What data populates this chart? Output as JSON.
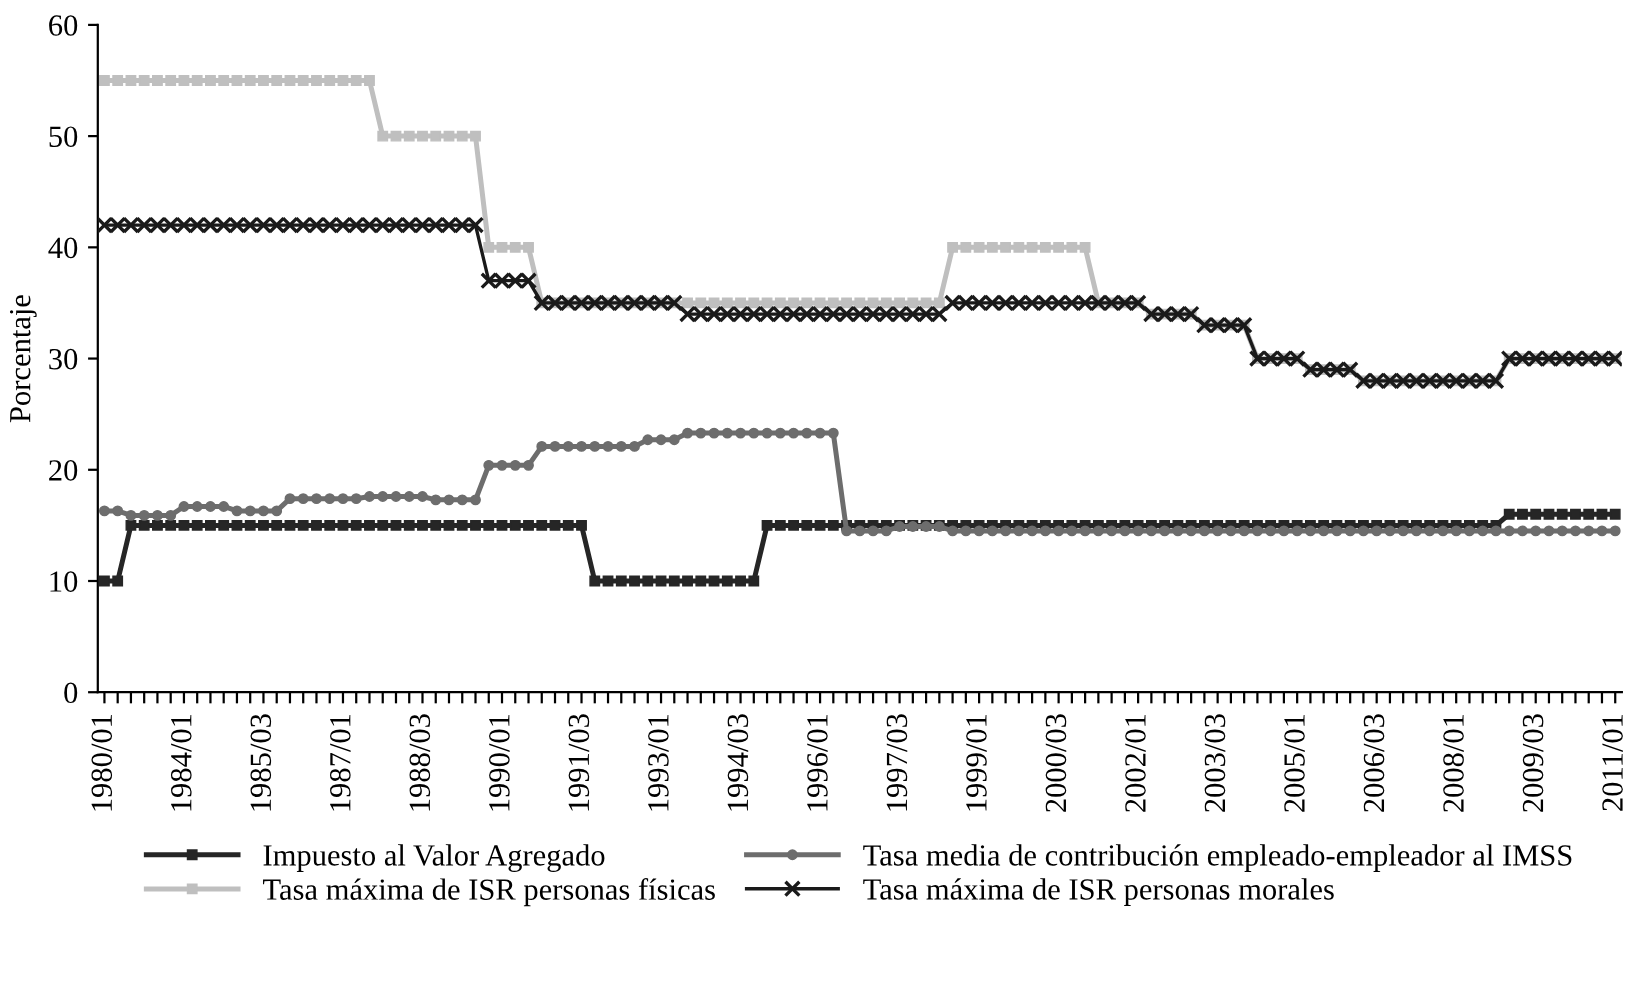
{
  "chart_data": {
    "type": "line",
    "ylabel": "Porcentaje",
    "ylim": [
      0,
      60
    ],
    "yticks": [
      0,
      10,
      20,
      30,
      40,
      50,
      60
    ],
    "grid": false,
    "legend": "bottom",
    "categories": [
      "1980/01",
      null,
      null,
      null,
      null,
      null,
      "1984/01",
      null,
      null,
      null,
      null,
      null,
      "1985/03",
      null,
      null,
      null,
      null,
      null,
      "1987/01",
      null,
      null,
      null,
      null,
      null,
      "1988/03",
      null,
      null,
      null,
      null,
      null,
      "1990/01",
      null,
      null,
      null,
      null,
      null,
      "1991/03",
      null,
      null,
      null,
      null,
      null,
      "1993/01",
      null,
      null,
      null,
      null,
      null,
      "1994/03",
      null,
      null,
      null,
      null,
      null,
      "1996/01",
      null,
      null,
      null,
      null,
      null,
      "1997/03",
      null,
      null,
      null,
      null,
      null,
      "1999/01",
      null,
      null,
      null,
      null,
      null,
      "2000/03",
      null,
      null,
      null,
      null,
      null,
      "2002/01",
      null,
      null,
      null,
      null,
      null,
      "2003/03",
      null,
      null,
      null,
      null,
      null,
      "2005/01",
      null,
      null,
      null,
      null,
      null,
      "2006/03",
      null,
      null,
      null,
      null,
      null,
      "2008/01",
      null,
      null,
      null,
      null,
      null,
      "2009/03",
      null,
      null,
      null,
      null,
      null,
      "2011/01"
    ],
    "series": [
      {
        "name": "Impuesto al Valor Agregado",
        "color": "#262626",
        "marker": "square",
        "values": [
          10,
          10,
          15,
          15,
          15,
          15,
          15,
          15,
          15,
          15,
          15,
          15,
          15,
          15,
          15,
          15,
          15,
          15,
          15,
          15,
          15,
          15,
          15,
          15,
          15,
          15,
          15,
          15,
          15,
          15,
          15,
          15,
          15,
          15,
          15,
          15,
          15,
          10,
          10,
          10,
          10,
          10,
          10,
          10,
          10,
          10,
          10,
          10,
          10,
          10,
          15,
          15,
          15,
          15,
          15,
          15,
          15,
          15,
          15,
          15,
          15,
          15,
          15,
          15,
          15,
          15,
          15,
          15,
          15,
          15,
          15,
          15,
          15,
          15,
          15,
          15,
          15,
          15,
          15,
          15,
          15,
          15,
          15,
          15,
          15,
          15,
          15,
          15,
          15,
          15,
          15,
          15,
          15,
          15,
          15,
          15,
          15,
          15,
          15,
          15,
          15,
          15,
          15,
          15,
          15,
          15,
          16,
          16,
          16,
          16,
          16,
          16,
          16,
          16,
          16
        ]
      },
      {
        "name": "Tasa máxima de ISR personas físicas",
        "color": "#bfbfbf",
        "marker": "square",
        "values": [
          55,
          55,
          55,
          55,
          55,
          55,
          55,
          55,
          55,
          55,
          55,
          55,
          55,
          55,
          55,
          55,
          55,
          55,
          55,
          55,
          55,
          50,
          50,
          50,
          50,
          50,
          50,
          50,
          50,
          40,
          40,
          40,
          40,
          35,
          35,
          35,
          35,
          35,
          35,
          35,
          35,
          35,
          35,
          35,
          35,
          35,
          35,
          35,
          35,
          35,
          35,
          35,
          35,
          35,
          35,
          35,
          35,
          35,
          35,
          35,
          35,
          35,
          35,
          35,
          40,
          40,
          40,
          40,
          40,
          40,
          40,
          40,
          40,
          40,
          40,
          35,
          35,
          35,
          35,
          34,
          34,
          34,
          34,
          33,
          33,
          33,
          33,
          30,
          30,
          30,
          30,
          29,
          29,
          29,
          29,
          28,
          28,
          28,
          28,
          28,
          28,
          28,
          28,
          28,
          28,
          28,
          30,
          30,
          30,
          30,
          30,
          30,
          30,
          30,
          30
        ]
      },
      {
        "name": "Tasa media de contribución empleado-empleador al IMSS",
        "color": "#6d6d6d",
        "marker": "circle",
        "values": [
          16.3,
          16.3,
          15.9,
          15.9,
          15.9,
          15.9,
          16.7,
          16.7,
          16.7,
          16.7,
          16.3,
          16.3,
          16.3,
          16.3,
          17.4,
          17.4,
          17.4,
          17.4,
          17.4,
          17.4,
          17.6,
          17.6,
          17.6,
          17.6,
          17.6,
          17.3,
          17.3,
          17.3,
          17.3,
          20.4,
          20.4,
          20.4,
          20.4,
          22.1,
          22.1,
          22.1,
          22.1,
          22.1,
          22.1,
          22.1,
          22.1,
          22.7,
          22.7,
          22.7,
          23.3,
          23.3,
          23.3,
          23.3,
          23.3,
          23.3,
          23.3,
          23.3,
          23.3,
          23.3,
          23.3,
          23.3,
          14.5,
          14.5,
          14.5,
          14.5,
          14.9,
          14.9,
          14.9,
          14.9,
          14.5,
          14.5,
          14.5,
          14.5,
          14.5,
          14.5,
          14.5,
          14.5,
          14.5,
          14.5,
          14.5,
          14.5,
          14.5,
          14.5,
          14.5,
          14.5,
          14.5,
          14.5,
          14.5,
          14.5,
          14.5,
          14.5,
          14.5,
          14.5,
          14.5,
          14.5,
          14.5,
          14.5,
          14.5,
          14.5,
          14.5,
          14.5,
          14.5,
          14.5,
          14.5,
          14.5,
          14.5,
          14.5,
          14.5,
          14.5,
          14.5,
          14.5,
          14.5,
          14.5,
          14.5,
          14.5,
          14.5,
          14.5,
          14.5,
          14.5,
          14.5
        ]
      },
      {
        "name": "Tasa máxima de ISR personas morales",
        "color": "#1a1a1a",
        "marker": "cross",
        "values": [
          42,
          42,
          42,
          42,
          42,
          42,
          42,
          42,
          42,
          42,
          42,
          42,
          42,
          42,
          42,
          42,
          42,
          42,
          42,
          42,
          42,
          42,
          42,
          42,
          42,
          42,
          42,
          42,
          42,
          37,
          37,
          37,
          37,
          35,
          35,
          35,
          35,
          35,
          35,
          35,
          35,
          35,
          35,
          35,
          34,
          34,
          34,
          34,
          34,
          34,
          34,
          34,
          34,
          34,
          34,
          34,
          34,
          34,
          34,
          34,
          34,
          34,
          34,
          34,
          35,
          35,
          35,
          35,
          35,
          35,
          35,
          35,
          35,
          35,
          35,
          35,
          35,
          35,
          35,
          34,
          34,
          34,
          34,
          33,
          33,
          33,
          33,
          30,
          30,
          30,
          30,
          29,
          29,
          29,
          29,
          28,
          28,
          28,
          28,
          28,
          28,
          28,
          28,
          28,
          28,
          28,
          30,
          30,
          30,
          30,
          30,
          30,
          30,
          30,
          30
        ]
      }
    ]
  }
}
